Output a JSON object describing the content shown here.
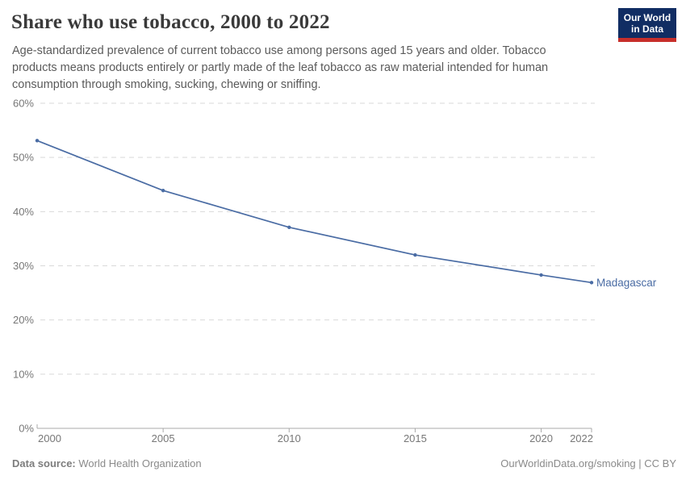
{
  "header": {
    "title": "Share who use tobacco, 2000 to 2022",
    "subtitle": "Age-standardized prevalence of current tobacco use among persons aged 15 years and older. Tobacco products means products entirely or partly made of the leaf tobacco as raw material intended for human consumption through smoking, sucking, chewing or sniffing.",
    "logo": {
      "line1": "Our World",
      "line2": "in Data"
    }
  },
  "chart_data": {
    "type": "line",
    "title": "Share who use tobacco, 2000 to 2022",
    "x": [
      2000,
      2005,
      2010,
      2015,
      2020,
      2022
    ],
    "series": [
      {
        "name": "Madagascar",
        "values": [
          53.1,
          43.9,
          37.1,
          32.0,
          28.3,
          26.9
        ]
      }
    ],
    "xlabel": "",
    "ylabel": "",
    "xlim": [
      2000,
      2022
    ],
    "ylim": [
      0,
      60
    ],
    "yticks": [
      0,
      10,
      20,
      30,
      40,
      50,
      60
    ],
    "ytick_format": "{v}%",
    "xticks": [
      2000,
      2005,
      2010,
      2015,
      2020,
      2022
    ],
    "grid": "horizontal-dashed",
    "legend": "inline-end-label"
  },
  "footer": {
    "source_label": "Data source:",
    "source_value": "World Health Organization",
    "attribution": "OurWorldinData.org/smoking | CC BY"
  },
  "colors": {
    "line": "#4a6ca4",
    "grid": "#d9d9d9",
    "axis": "#a8a8a8",
    "tick_label": "#777777",
    "title": "#3a3a3a",
    "subtitle": "#5b5b5b",
    "logo_bg": "#112d63",
    "logo_accent": "#c72f2b"
  }
}
